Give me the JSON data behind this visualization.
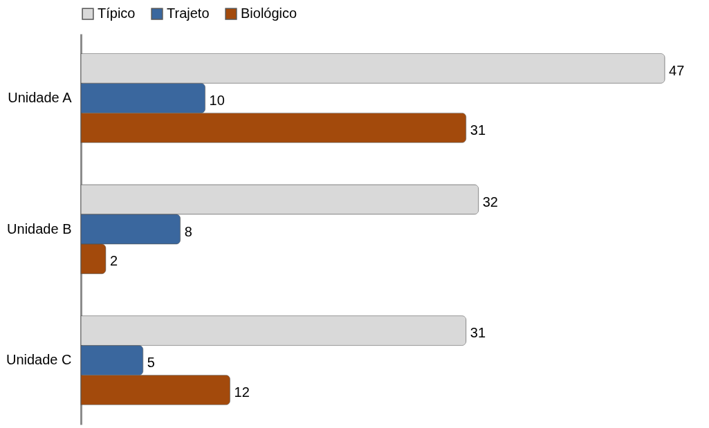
{
  "chart_data": {
    "type": "bar",
    "orientation": "horizontal",
    "categories": [
      "Unidade A",
      "Unidade B",
      "Unidade C"
    ],
    "series": [
      {
        "name": "Típico",
        "color": "#d9d9d9",
        "values": [
          47,
          32,
          31
        ]
      },
      {
        "name": "Trajeto",
        "color": "#3a679e",
        "values": [
          10,
          8,
          5
        ]
      },
      {
        "name": "Biológico",
        "color": "#a34a0c",
        "values": [
          31,
          2,
          12
        ]
      }
    ],
    "data_labels": true,
    "legend": "top",
    "tick_labels": "y"
  }
}
